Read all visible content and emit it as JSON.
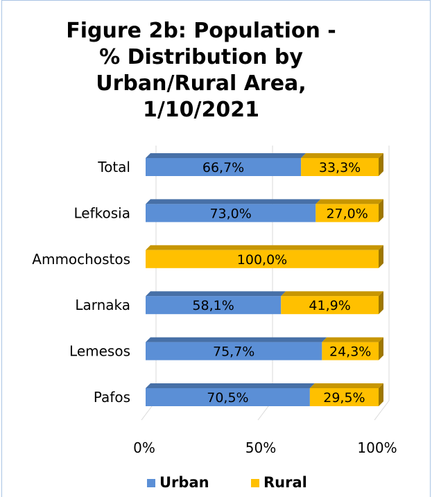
{
  "chart_data": {
    "type": "bar",
    "orientation": "horizontal",
    "stacked": true,
    "title": "Figure 2b: Population -\n% Distribution by\nUrban/Rural Area,\n1/10/2021",
    "categories": [
      "Total",
      "Lefkosia",
      "Ammochostos",
      "Larnaka",
      "Lemesos",
      "Pafos"
    ],
    "series": [
      {
        "name": "Urban",
        "color": "#5b8fd6",
        "values": [
          66.7,
          73.0,
          0,
          58.1,
          75.7,
          70.5
        ]
      },
      {
        "name": "Rural",
        "color": "#ffc000",
        "values": [
          33.3,
          27.0,
          100.0,
          41.9,
          24.3,
          29.5
        ]
      }
    ],
    "data_labels": [
      [
        "66,7%",
        "73,0%",
        "",
        "58,1%",
        "75,7%",
        "70,5%"
      ],
      [
        "33,3%",
        "27,0%",
        "100,0%",
        "41,9%",
        "24,3%",
        "29,5%"
      ]
    ],
    "x_ticks": [
      "0%",
      "50%",
      "100%"
    ],
    "xlim": [
      0,
      100
    ],
    "grid": true,
    "legend_position": "bottom"
  }
}
